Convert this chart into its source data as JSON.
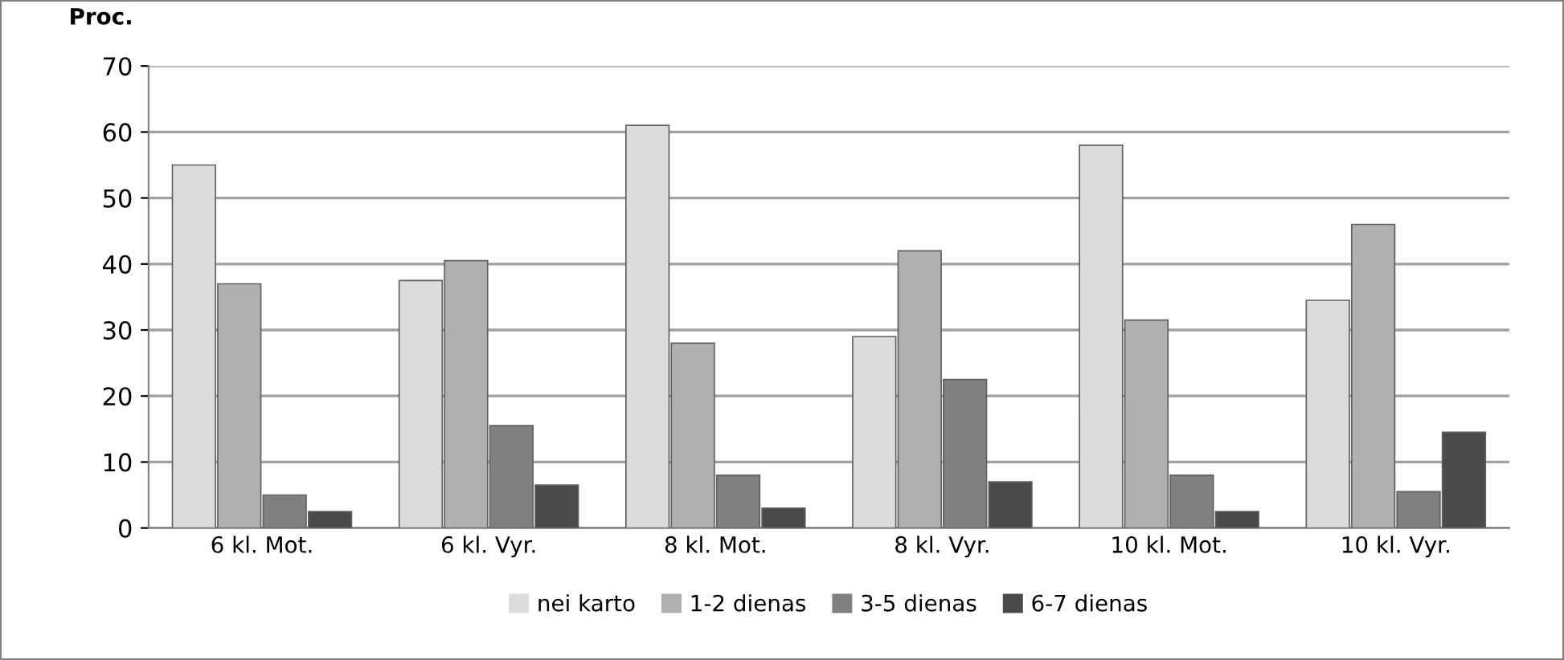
{
  "chart_data": {
    "type": "bar",
    "ylabel": "Proc.",
    "categories": [
      "6 kl. Mot.",
      "6 kl. Vyr.",
      "8 kl. Mot.",
      "8 kl. Vyr.",
      "10 kl. Mot.",
      "10 kl. Vyr."
    ],
    "series": [
      {
        "name": "nei karto",
        "color": "#dcdcdc",
        "values": [
          55,
          37.5,
          61,
          29,
          58,
          34.5
        ]
      },
      {
        "name": "1-2 dienas",
        "color": "#b0b0b0",
        "values": [
          37,
          40.5,
          28,
          42,
          31.5,
          46
        ]
      },
      {
        "name": "3-5 dienas",
        "color": "#808080",
        "values": [
          5,
          15.5,
          8,
          22.5,
          8,
          5.5
        ]
      },
      {
        "name": "6-7 dienas",
        "color": "#4a4a4a",
        "values": [
          2.5,
          6.5,
          3,
          7,
          2.5,
          14.5
        ]
      }
    ],
    "ylim": [
      0,
      70
    ],
    "yticks": [
      0,
      10,
      20,
      30,
      40,
      50,
      60,
      70
    ],
    "grid": "y",
    "legend": "bottom"
  }
}
